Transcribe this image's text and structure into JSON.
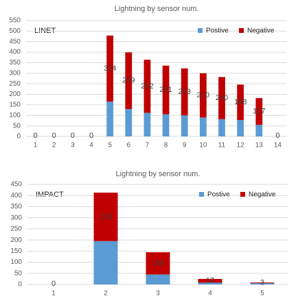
{
  "chart_data": [
    {
      "type": "stacked-bar",
      "title": "Lightning by sensor num.",
      "annotation": "LINET",
      "categories": [
        "1",
        "2",
        "3",
        "4",
        "5",
        "6",
        "7",
        "8",
        "9",
        "10",
        "11",
        "12",
        "13",
        "14"
      ],
      "series": [
        {
          "name": "Postive",
          "color": "#5b9bd5",
          "values": [
            0,
            0,
            0,
            0,
            165,
            130,
            112,
            105,
            100,
            90,
            82,
            78,
            55,
            0
          ]
        },
        {
          "name": "Negative",
          "color": "#c00000",
          "values": [
            0,
            0,
            0,
            0,
            314,
            269,
            252,
            231,
            223,
            210,
            200,
            168,
            127,
            0
          ]
        }
      ],
      "ylim": [
        0,
        550
      ],
      "yticks": [
        0,
        50,
        100,
        150,
        200,
        250,
        300,
        350,
        400,
        450,
        500,
        550
      ],
      "grid": true,
      "legend": "top-right"
    },
    {
      "type": "stacked-bar",
      "title": "Lightning by sensor num.",
      "annotation": "IMPACT",
      "categories": [
        "1",
        "2",
        "3",
        "4",
        "5"
      ],
      "series": [
        {
          "name": "Postive",
          "color": "#5b9bd5",
          "values": [
            0,
            195,
            45,
            8,
            6
          ]
        },
        {
          "name": "Negative",
          "color": "#c00000",
          "values": [
            0,
            218,
            100,
            17,
            3
          ]
        }
      ],
      "ylim": [
        0,
        450
      ],
      "yticks": [
        0,
        50,
        100,
        150,
        200,
        250,
        300,
        350,
        400,
        450
      ],
      "grid": true,
      "legend": "top-right"
    }
  ]
}
